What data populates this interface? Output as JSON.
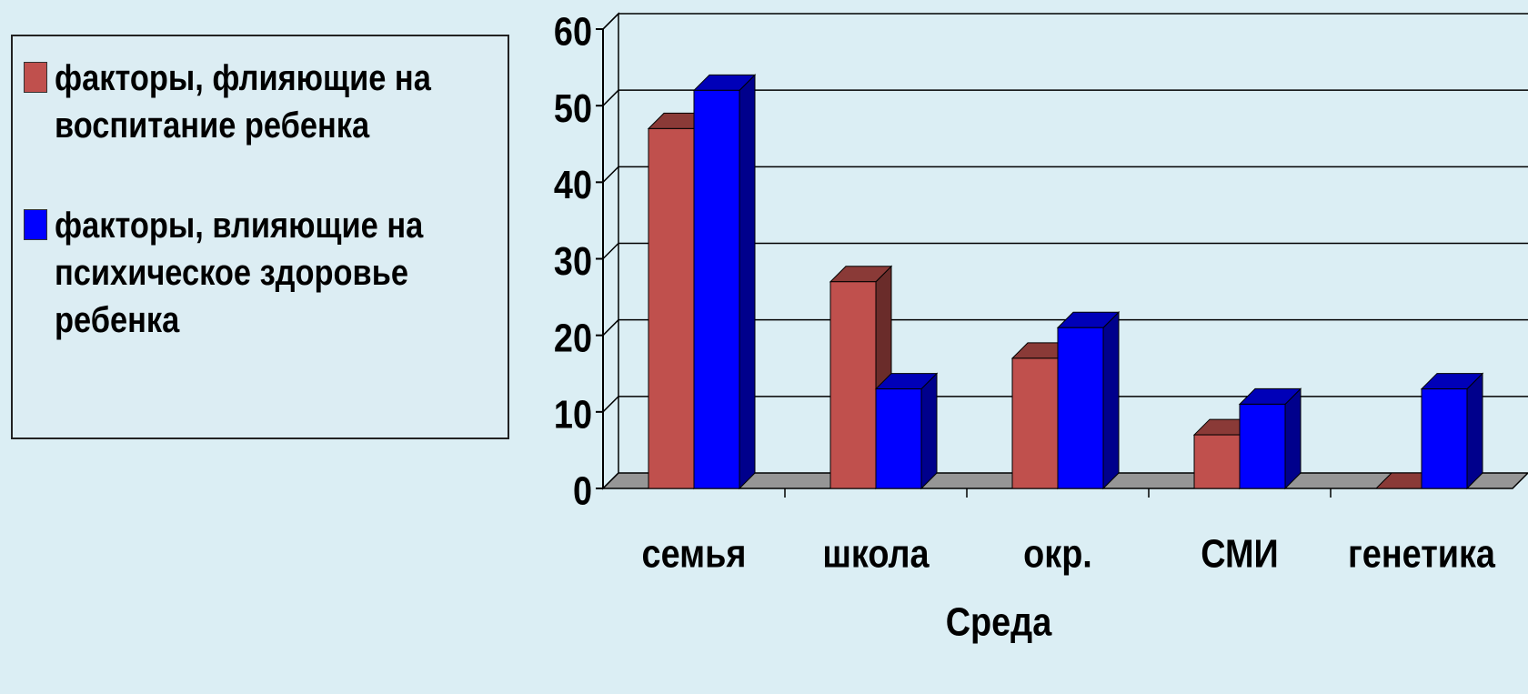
{
  "chart_data": {
    "type": "bar3d",
    "x_label": "Среда",
    "categories": [
      "семья",
      "школа",
      "окр.",
      "СМИ",
      "генетика"
    ],
    "series": [
      {
        "name": "факторы, флияющие на воспитание ребенка",
        "color": "#c0504d",
        "values": [
          47,
          27,
          17,
          7,
          0
        ]
      },
      {
        "name": "факторы, влияющие на психическое здоровье ребенка",
        "color": "#0000ff",
        "values": [
          52,
          13,
          21,
          11,
          13
        ]
      }
    ],
    "ylim": [
      0,
      60
    ],
    "yticks": [
      0,
      10,
      20,
      30,
      40,
      50,
      60
    ],
    "grid": true,
    "legend": "left"
  }
}
